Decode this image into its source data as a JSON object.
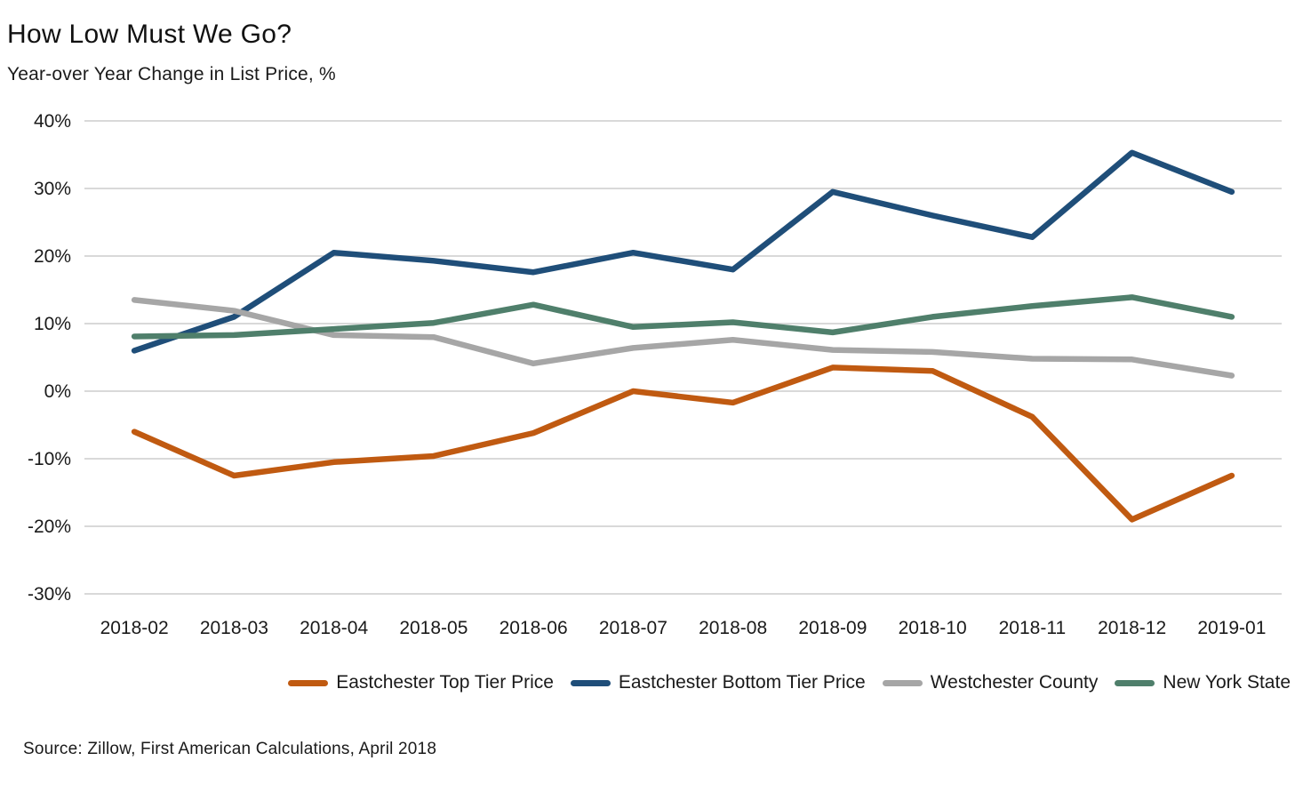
{
  "chart_data": {
    "type": "line",
    "title": "How Low Must We Go?",
    "subtitle": "Year-over Year Change in List Price, %",
    "source": "Source: Zillow, First American Calculations, April 2018",
    "categories": [
      "2018-02",
      "2018-03",
      "2018-04",
      "2018-05",
      "2018-06",
      "2018-07",
      "2018-08",
      "2018-09",
      "2018-10",
      "2018-11",
      "2018-12",
      "2019-01"
    ],
    "series": [
      {
        "name": "Eastchester Top Tier Price",
        "color": "#C05A11",
        "values": [
          -6,
          -12.5,
          -10.5,
          -9.6,
          -6.2,
          0,
          -1.7,
          3.5,
          3,
          -3.8,
          -19,
          -12.5
        ]
      },
      {
        "name": "Eastchester Bottom Tier Price",
        "color": "#1F4E79",
        "values": [
          6,
          11,
          20.5,
          19.3,
          17.6,
          20.5,
          18,
          29.5,
          26,
          22.8,
          35.3,
          29.5
        ]
      },
      {
        "name": "Westchester County",
        "color": "#A6A6A6",
        "values": [
          13.5,
          11.9,
          8.3,
          8,
          4.1,
          6.4,
          7.6,
          6.1,
          5.8,
          4.8,
          4.7,
          2.3
        ]
      },
      {
        "name": "New York State",
        "color": "#4F7F6B",
        "values": [
          8.1,
          8.3,
          9.2,
          10.1,
          12.8,
          9.5,
          10.2,
          8.7,
          11,
          12.6,
          13.9,
          11
        ]
      }
    ],
    "y_ticks": [
      40,
      30,
      20,
      10,
      0,
      -10,
      -20,
      -30
    ],
    "y_tick_suffix": "%",
    "ylim": [
      -30,
      40
    ],
    "grid": "horizontal",
    "gridline_color": "#D9D9D9",
    "axis_text_color": "#1a1a1a",
    "legend_position": "bottom"
  }
}
